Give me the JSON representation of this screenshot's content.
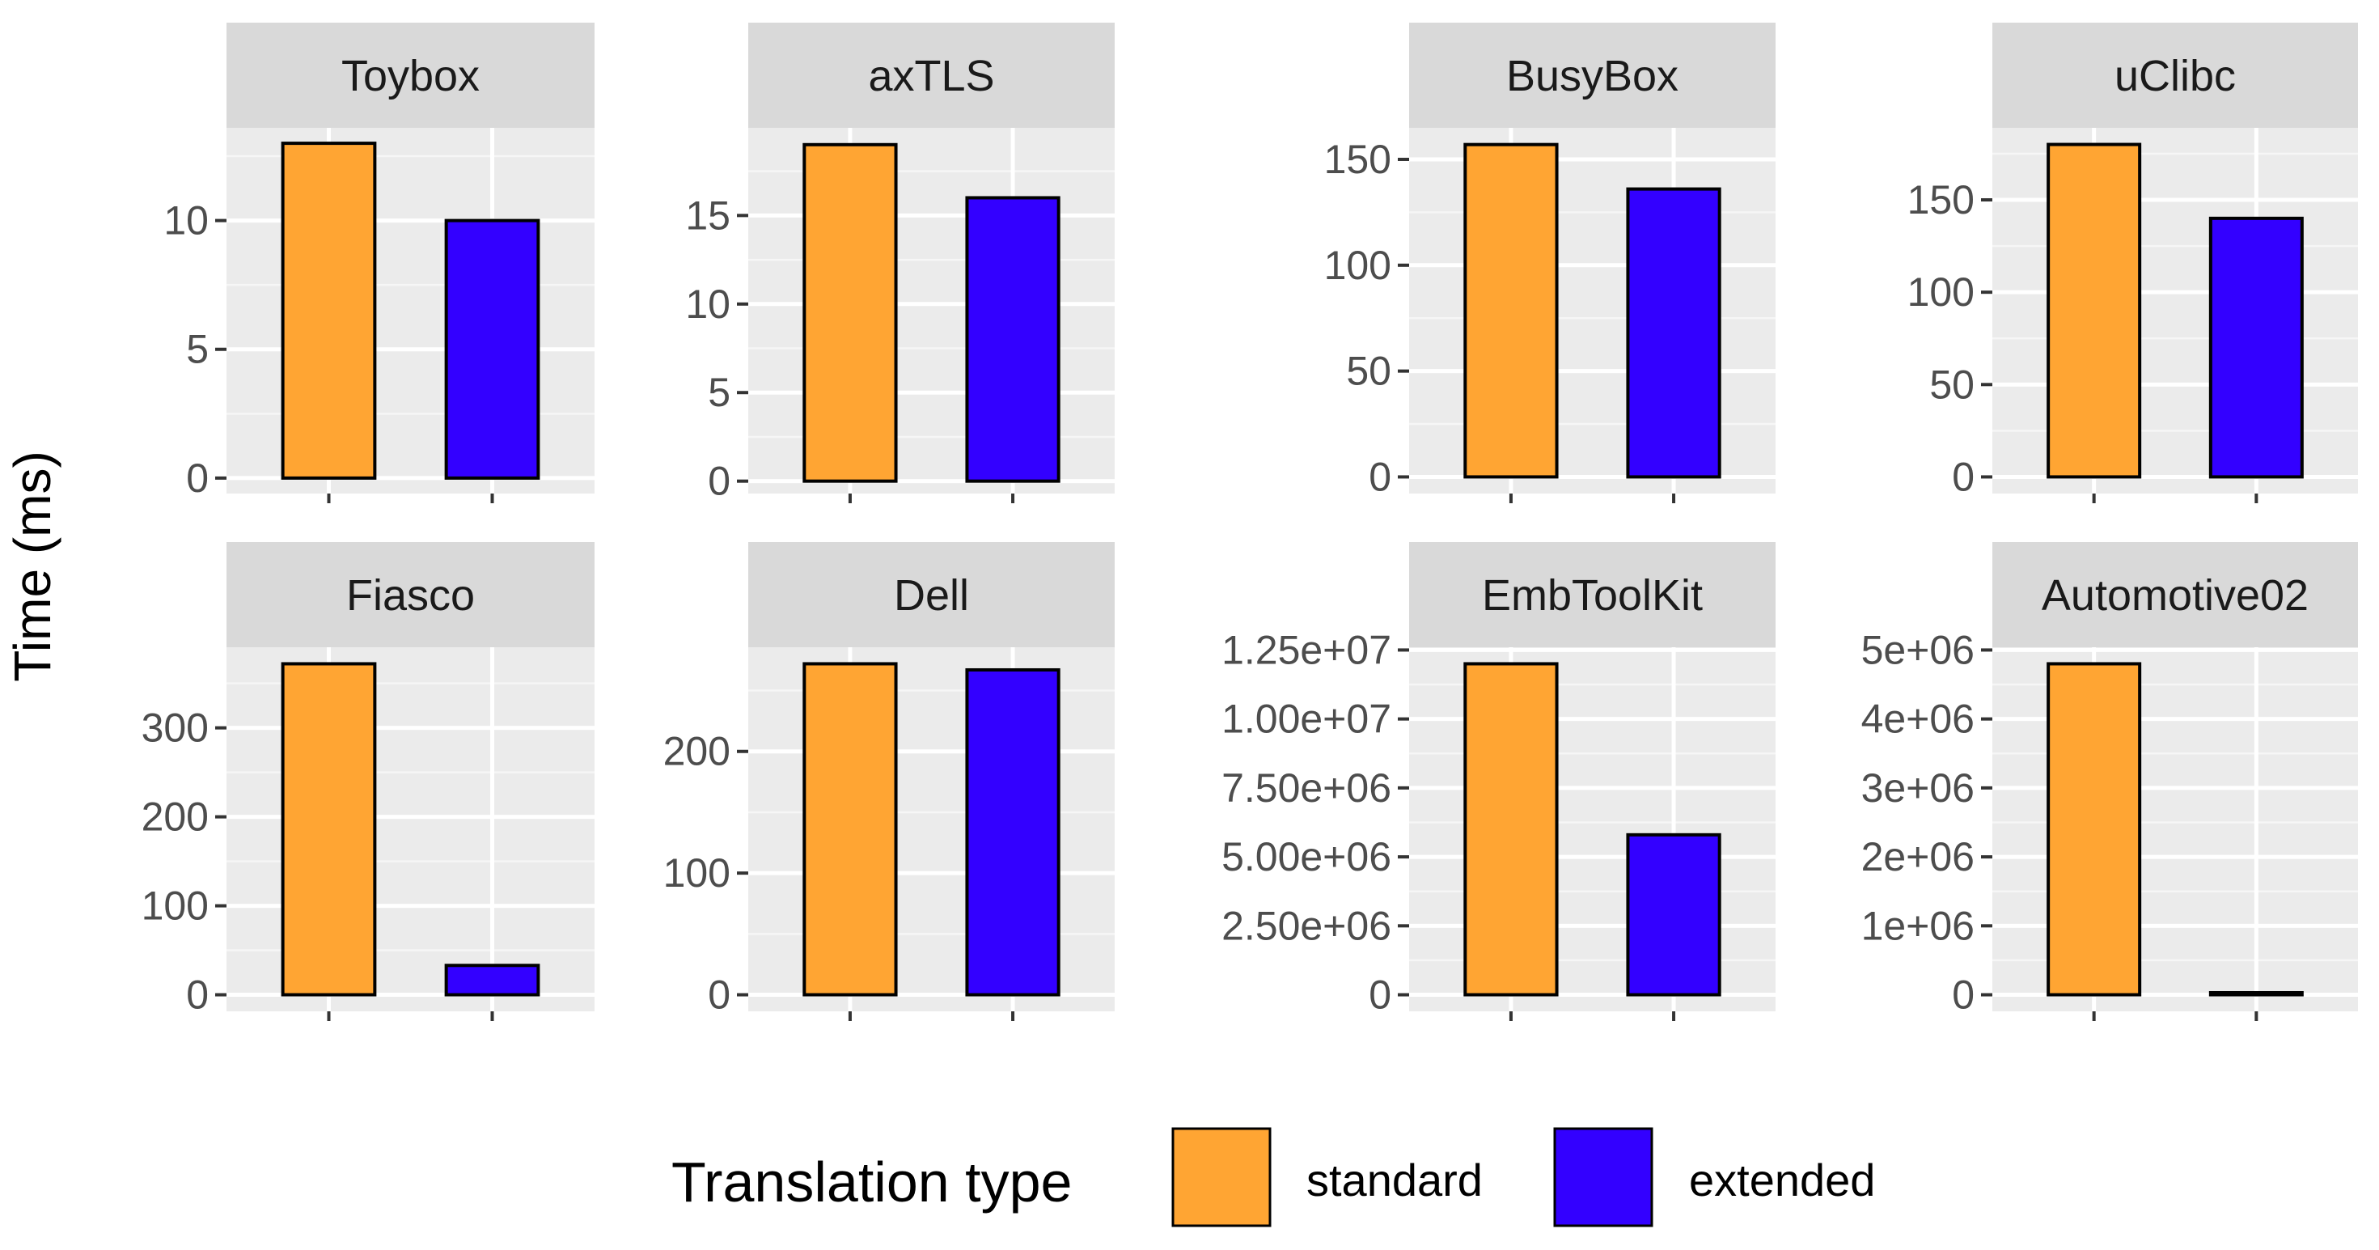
{
  "chart_data": {
    "type": "bar",
    "ylabel": "Time (ms)",
    "legend": {
      "title": "Translation type",
      "position": "bottom",
      "entries": [
        {
          "name": "standard",
          "color": "#FFA533"
        },
        {
          "name": "extended",
          "color": "#3300FF"
        }
      ]
    },
    "categories": [
      "standard",
      "extended"
    ],
    "panels": [
      {
        "title": "Toybox",
        "values": [
          13,
          10
        ],
        "ylim": [
          -0.6,
          13.6
        ],
        "ticks": [
          0,
          5,
          10
        ],
        "tick_labels": [
          "0",
          "5",
          "10"
        ]
      },
      {
        "title": "axTLS",
        "values": [
          19,
          16
        ],
        "ylim": [
          -0.7,
          19.95
        ],
        "ticks": [
          0,
          5,
          10,
          15
        ],
        "tick_labels": [
          "0",
          "5",
          "10",
          "15"
        ]
      },
      {
        "title": "BusyBox",
        "values": [
          157,
          136
        ],
        "ylim": [
          -7.85,
          164.9
        ],
        "ticks": [
          0,
          50,
          100,
          150
        ],
        "tick_labels": [
          "0",
          "50",
          "100",
          "150"
        ]
      },
      {
        "title": "uClibc",
        "values": [
          180,
          140
        ],
        "ylim": [
          -9,
          189
        ],
        "ticks": [
          0,
          50,
          100,
          150
        ],
        "tick_labels": [
          "0",
          "50",
          "100",
          "150"
        ]
      },
      {
        "title": "Fiasco",
        "values": [
          372,
          33
        ],
        "ylim": [
          -18.6,
          390.6
        ],
        "ticks": [
          0,
          100,
          200,
          300
        ],
        "tick_labels": [
          "0",
          "100",
          "200",
          "300"
        ]
      },
      {
        "title": "Dell",
        "values": [
          272,
          267
        ],
        "ylim": [
          -13.6,
          285.6
        ],
        "ticks": [
          0,
          100,
          200
        ],
        "tick_labels": [
          "0",
          "100",
          "200"
        ]
      },
      {
        "title": "EmbToolKit",
        "values": [
          12000000,
          5800000
        ],
        "ylim": [
          -600000,
          12600000
        ],
        "ticks": [
          0,
          2500000,
          5000000,
          7500000,
          10000000,
          12500000
        ],
        "tick_labels": [
          "0",
          "2.50e+06",
          "5.00e+06",
          "7.50e+06",
          "1.00e+07",
          "1.25e+07"
        ]
      },
      {
        "title": "Automotive02",
        "values": [
          4800000,
          30000
        ],
        "ylim": [
          -240000,
          5040000
        ],
        "ticks": [
          0,
          1000000,
          2000000,
          3000000,
          4000000,
          5000000
        ],
        "tick_labels": [
          "0",
          "1e+06",
          "2e+06",
          "3e+06",
          "4e+06",
          "5e+06"
        ]
      }
    ]
  }
}
